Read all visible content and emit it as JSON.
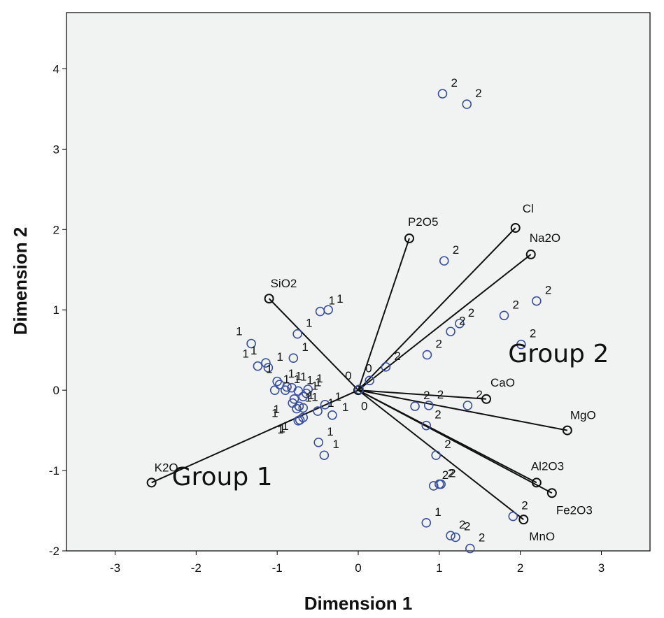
{
  "chart_data": {
    "type": "scatter",
    "subtype": "biplot",
    "xlabel": "Dimension 1",
    "ylabel": "Dimension 2",
    "xlim": [
      -3.6,
      3.6
    ],
    "ylim": [
      -2.0,
      4.7
    ],
    "xticks": [
      -3,
      -2,
      -1,
      0,
      1,
      2,
      3
    ],
    "yticks": [
      -2,
      -1,
      0,
      1,
      2,
      3,
      4
    ],
    "grid": false,
    "background": "#f1f3f2",
    "point_color": "#3a50a0",
    "vectors": [
      {
        "name": "P2O5",
        "x": 0.63,
        "y": 1.89
      },
      {
        "name": "Cl",
        "x": 1.94,
        "y": 2.02
      },
      {
        "name": "Na2O",
        "x": 2.13,
        "y": 1.69
      },
      {
        "name": "SiO2",
        "x": -1.1,
        "y": 1.14
      },
      {
        "name": "CaO",
        "x": 1.58,
        "y": -0.11
      },
      {
        "name": "MgO",
        "x": 2.58,
        "y": -0.5
      },
      {
        "name": "Al2O3",
        "x": 2.2,
        "y": -1.15
      },
      {
        "name": "Fe2O3",
        "x": 2.39,
        "y": -1.28
      },
      {
        "name": "MnO",
        "x": 2.04,
        "y": -1.61
      },
      {
        "name": "K2O",
        "x": -2.55,
        "y": -1.15
      }
    ],
    "annotations": [
      {
        "text": "Group 1",
        "x": -2.3,
        "y": -1.18
      },
      {
        "text": "Group 2",
        "x": 1.85,
        "y": 0.35
      }
    ],
    "points": [
      {
        "x": 1.04,
        "y": 3.69,
        "label": "2"
      },
      {
        "x": 1.34,
        "y": 3.56,
        "label": "2"
      },
      {
        "x": 1.06,
        "y": 1.61,
        "label": "2"
      },
      {
        "x": 2.2,
        "y": 1.11,
        "label": "2"
      },
      {
        "x": 1.8,
        "y": 0.93,
        "label": "2"
      },
      {
        "x": 1.25,
        "y": 0.83,
        "label": "2"
      },
      {
        "x": 1.14,
        "y": 0.73,
        "label": "2"
      },
      {
        "x": 2.01,
        "y": 0.57,
        "label": "2"
      },
      {
        "x": 0.85,
        "y": 0.44,
        "label": "2"
      },
      {
        "x": 0.34,
        "y": 0.29,
        "label": "2"
      },
      {
        "x": 0.14,
        "y": 0.12,
        "label": "0"
      },
      {
        "x": 0.01,
        "y": 0.01,
        "label": "0"
      },
      {
        "x": 0.0,
        "y": -0.04,
        "label": "0"
      },
      {
        "x": 0.7,
        "y": -0.2,
        "label": "2"
      },
      {
        "x": 0.87,
        "y": -0.19,
        "label": "2"
      },
      {
        "x": 1.35,
        "y": -0.19,
        "label": "2"
      },
      {
        "x": 0.84,
        "y": -0.44,
        "label": "2"
      },
      {
        "x": 0.96,
        "y": -0.81,
        "label": "2"
      },
      {
        "x": 0.93,
        "y": -1.19,
        "label": "2"
      },
      {
        "x": 1.0,
        "y": -1.17,
        "label": "2"
      },
      {
        "x": 1.02,
        "y": -1.17,
        "label": "2"
      },
      {
        "x": 1.91,
        "y": -1.57,
        "label": "2"
      },
      {
        "x": 0.84,
        "y": -1.65,
        "label": "1"
      },
      {
        "x": 1.14,
        "y": -1.81,
        "label": "2"
      },
      {
        "x": 1.2,
        "y": -1.83,
        "label": "2"
      },
      {
        "x": 1.38,
        "y": -1.97,
        "label": "2"
      },
      {
        "x": -0.47,
        "y": 0.98,
        "label": "1"
      },
      {
        "x": -0.37,
        "y": 1.0,
        "label": "1"
      },
      {
        "x": -0.75,
        "y": 0.7,
        "label": "1"
      },
      {
        "x": -1.32,
        "y": 0.58,
        "label": "1"
      },
      {
        "x": -0.8,
        "y": 0.4,
        "label": "1"
      },
      {
        "x": -1.14,
        "y": 0.34,
        "label": "1"
      },
      {
        "x": -1.11,
        "y": 0.28,
        "label": "1"
      },
      {
        "x": -1.24,
        "y": 0.3,
        "label": "1"
      },
      {
        "x": -1.0,
        "y": 0.11,
        "label": "1"
      },
      {
        "x": -0.97,
        "y": 0.07,
        "label": "1"
      },
      {
        "x": -0.88,
        "y": 0.04,
        "label": "1"
      },
      {
        "x": -1.03,
        "y": 0.0,
        "label": "1"
      },
      {
        "x": -0.9,
        "y": 0.0,
        "label": "1"
      },
      {
        "x": -0.82,
        "y": 0.03,
        "label": "1"
      },
      {
        "x": -0.74,
        "y": -0.01,
        "label": "1"
      },
      {
        "x": -0.62,
        "y": 0.01,
        "label": "1"
      },
      {
        "x": -0.64,
        "y": -0.04,
        "label": "1"
      },
      {
        "x": -0.68,
        "y": -0.08,
        "label": "1"
      },
      {
        "x": -0.79,
        "y": -0.11,
        "label": "1"
      },
      {
        "x": -0.81,
        "y": -0.16,
        "label": "1"
      },
      {
        "x": -0.73,
        "y": -0.2,
        "label": "1"
      },
      {
        "x": -0.76,
        "y": -0.23,
        "label": "1"
      },
      {
        "x": -0.68,
        "y": -0.22,
        "label": "1"
      },
      {
        "x": -0.41,
        "y": -0.18,
        "label": "1"
      },
      {
        "x": -0.5,
        "y": -0.26,
        "label": "1"
      },
      {
        "x": -0.32,
        "y": -0.31,
        "label": "1"
      },
      {
        "x": -0.68,
        "y": -0.34,
        "label": "1"
      },
      {
        "x": -0.72,
        "y": -0.37,
        "label": "1"
      },
      {
        "x": -0.74,
        "y": -0.38,
        "label": "1"
      },
      {
        "x": -0.49,
        "y": -0.65,
        "label": "1"
      },
      {
        "x": -0.42,
        "y": -0.81,
        "label": "1"
      }
    ],
    "point_label_offsets": [
      [
        12,
        -10
      ],
      [
        12,
        -10
      ],
      [
        12,
        -10
      ],
      [
        12,
        -10
      ],
      [
        12,
        -10
      ],
      [
        12,
        -10
      ],
      [
        12,
        -10
      ],
      [
        12,
        -10
      ],
      [
        12,
        -10
      ],
      [
        12,
        -10
      ],
      [
        -6,
        -12
      ],
      [
        -20,
        -14
      ],
      [
        4,
        24
      ],
      [
        12,
        -10
      ],
      [
        12,
        -10
      ],
      [
        12,
        -10
      ],
      [
        12,
        -10
      ],
      [
        12,
        -10
      ],
      [
        12,
        -10
      ],
      [
        12,
        -10
      ],
      [
        12,
        -10
      ],
      [
        12,
        -10
      ],
      [
        12,
        -10
      ],
      [
        12,
        -10
      ],
      [
        12,
        -10
      ],
      [
        12,
        -10
      ],
      [
        12,
        -10
      ],
      [
        12,
        -10
      ],
      [
        12,
        -10
      ],
      [
        -22,
        -12
      ],
      [
        12,
        -10
      ],
      [
        -22,
        -12
      ],
      [
        12,
        -10
      ],
      [
        -22,
        -12
      ],
      [
        -16,
        -12
      ],
      [
        12,
        -10
      ],
      [
        12,
        -10
      ],
      [
        12,
        -10
      ],
      [
        12,
        -10
      ],
      [
        12,
        -10
      ],
      [
        12,
        -10
      ],
      [
        12,
        -10
      ],
      [
        12,
        -10
      ],
      [
        12,
        -10
      ],
      [
        -30,
        20
      ],
      [
        -30,
        20
      ],
      [
        12,
        -10
      ],
      [
        12,
        -10
      ],
      [
        12,
        -10
      ],
      [
        14,
        -6
      ],
      [
        14,
        -6
      ],
      [
        14,
        -6
      ],
      [
        -30,
        18
      ],
      [
        -30,
        18
      ],
      [
        -30,
        18
      ],
      [
        12,
        -10
      ],
      [
        12,
        -10
      ]
    ]
  }
}
